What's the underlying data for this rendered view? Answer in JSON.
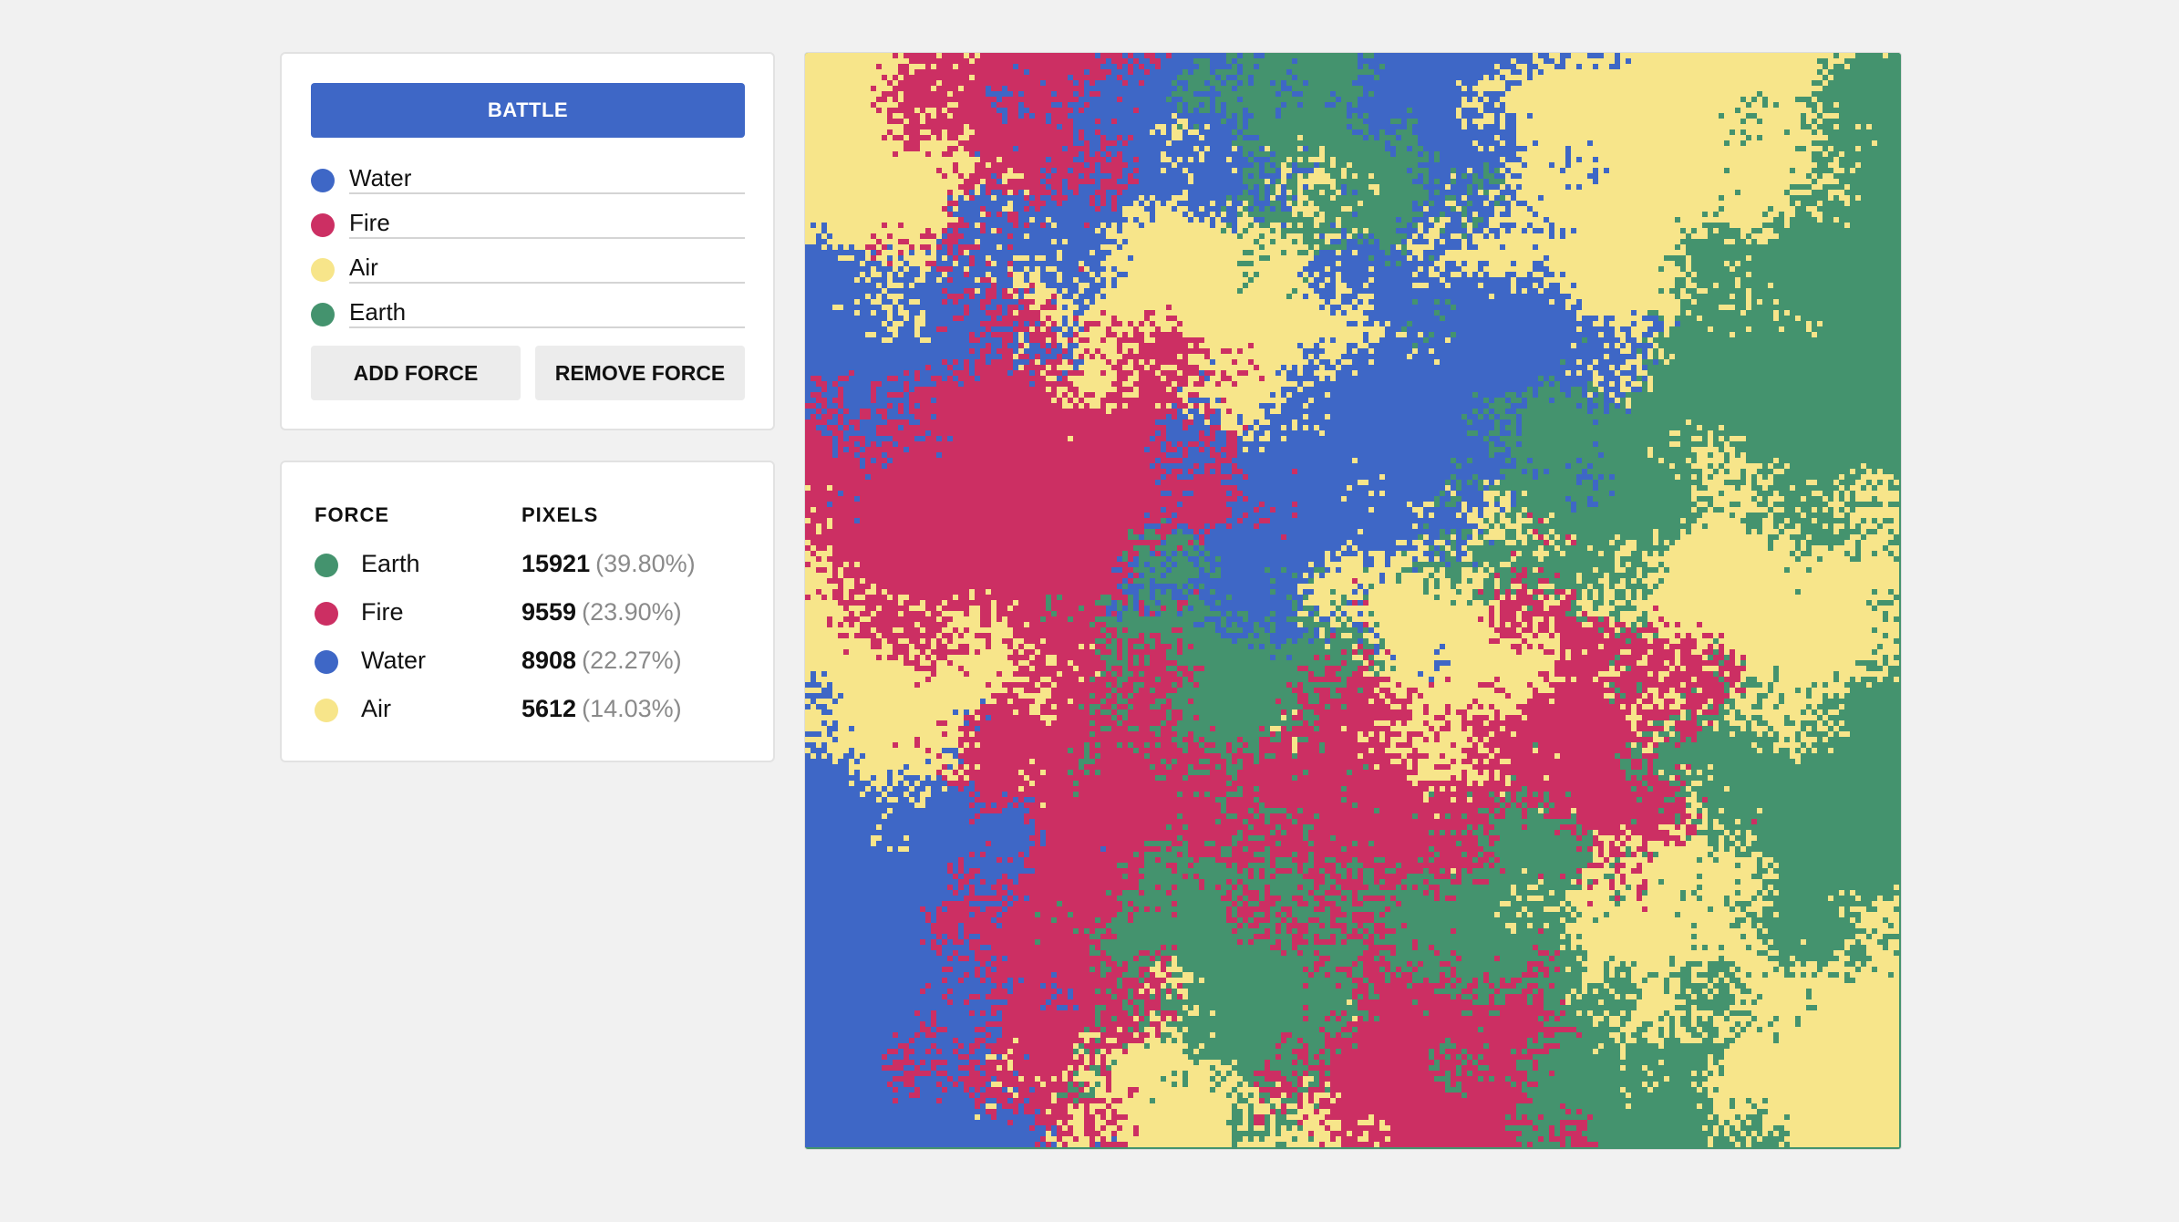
{
  "controls": {
    "battle_label": "BATTLE",
    "forces": [
      {
        "name": "Water",
        "color": "#3e67c6"
      },
      {
        "name": "Fire",
        "color": "#cc2f63"
      },
      {
        "name": "Air",
        "color": "#f7e58a"
      },
      {
        "name": "Earth",
        "color": "#44936e"
      }
    ],
    "add_label": "ADD FORCE",
    "remove_label": "REMOVE FORCE"
  },
  "stats": {
    "headers": {
      "force": "FORCE",
      "pixels": "PIXELS"
    },
    "rows": [
      {
        "name": "Earth",
        "color": "#44936e",
        "count": "15921",
        "pct": "(39.80%)"
      },
      {
        "name": "Fire",
        "color": "#cc2f63",
        "count": "9559",
        "pct": "(23.90%)"
      },
      {
        "name": "Water",
        "color": "#3e67c6",
        "count": "8908",
        "pct": "(22.27%)"
      },
      {
        "name": "Air",
        "color": "#f7e58a",
        "count": "5612",
        "pct": "(14.03%)"
      }
    ]
  }
}
